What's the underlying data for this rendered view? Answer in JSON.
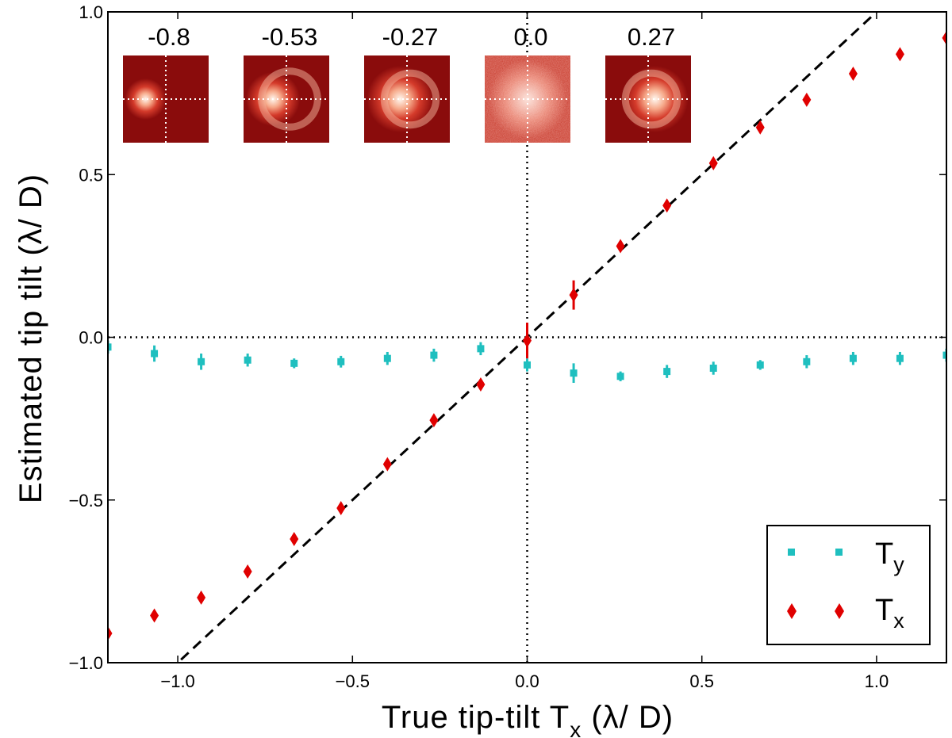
{
  "chart_data": {
    "type": "scatter",
    "xlabel": "True tip-tilt T",
    "xlabel_sub": "x",
    "xlabel_unit": "(λ/ D)",
    "ylabel": "Estimated tip tilt (λ/ D)",
    "xlim": [
      -1.2,
      1.2
    ],
    "ylim": [
      -1.0,
      1.0
    ],
    "xticks": [
      -1.0,
      -0.5,
      0.0,
      0.5,
      1.0
    ],
    "xtick_labels": [
      "−1.0",
      "−0.5",
      "0.0",
      "0.5",
      "1.0"
    ],
    "yticks": [
      -1.0,
      -0.5,
      0.0,
      0.5,
      1.0
    ],
    "ytick_labels": [
      "−1.0",
      "−0.5",
      "0.0",
      "0.5",
      "1.0"
    ],
    "reference_line": {
      "style": "dashed",
      "slope": 1,
      "intercept": 0,
      "color": "#000000"
    },
    "crosshair_lines": {
      "x": 0,
      "y": 0,
      "style": "dotted"
    },
    "legend_position": "bottom-right",
    "series": [
      {
        "name": "T",
        "name_sub": "y",
        "marker": "square",
        "color": "#1fbfbf",
        "x": [
          -1.2,
          -1.067,
          -0.933,
          -0.8,
          -0.667,
          -0.533,
          -0.4,
          -0.267,
          -0.133,
          0.0,
          0.133,
          0.267,
          0.4,
          0.533,
          0.667,
          0.8,
          0.933,
          1.067,
          1.2
        ],
        "y": [
          -0.03,
          -0.05,
          -0.075,
          -0.07,
          -0.08,
          -0.075,
          -0.065,
          -0.055,
          -0.035,
          -0.085,
          -0.11,
          -0.12,
          -0.105,
          -0.095,
          -0.085,
          -0.075,
          -0.065,
          -0.065,
          -0.055
        ],
        "yerr": [
          0.02,
          0.025,
          0.025,
          0.02,
          0.015,
          0.018,
          0.02,
          0.02,
          0.02,
          0.02,
          0.03,
          0.015,
          0.02,
          0.02,
          0.015,
          0.02,
          0.02,
          0.02,
          0.02
        ]
      },
      {
        "name": "T",
        "name_sub": "x",
        "marker": "diamond",
        "color": "#e00000",
        "x": [
          -1.2,
          -1.067,
          -0.933,
          -0.8,
          -0.667,
          -0.533,
          -0.4,
          -0.267,
          -0.133,
          0.0,
          0.133,
          0.267,
          0.4,
          0.533,
          0.667,
          0.8,
          0.933,
          1.067,
          1.2
        ],
        "y": [
          -0.91,
          -0.855,
          -0.8,
          -0.72,
          -0.62,
          -0.525,
          -0.39,
          -0.255,
          -0.145,
          -0.01,
          0.13,
          0.28,
          0.405,
          0.535,
          0.645,
          0.73,
          0.81,
          0.87,
          0.92
        ],
        "yerr": [
          0.0,
          0.0,
          0.0,
          0.0,
          0.0,
          0.0,
          0.0,
          0.0,
          0.0,
          0.055,
          0.045,
          0.0,
          0.0,
          0.0,
          0.0,
          0.0,
          0.0,
          0.0,
          0.0
        ]
      }
    ],
    "insets": [
      {
        "label": "-0.8",
        "spot_offset": -0.8
      },
      {
        "label": "-0.53",
        "spot_offset": -0.53
      },
      {
        "label": "-0.27",
        "spot_offset": -0.27
      },
      {
        "label": "0.0",
        "spot_offset": 0.0
      },
      {
        "label": "0.27",
        "spot_offset": 0.27
      }
    ]
  }
}
